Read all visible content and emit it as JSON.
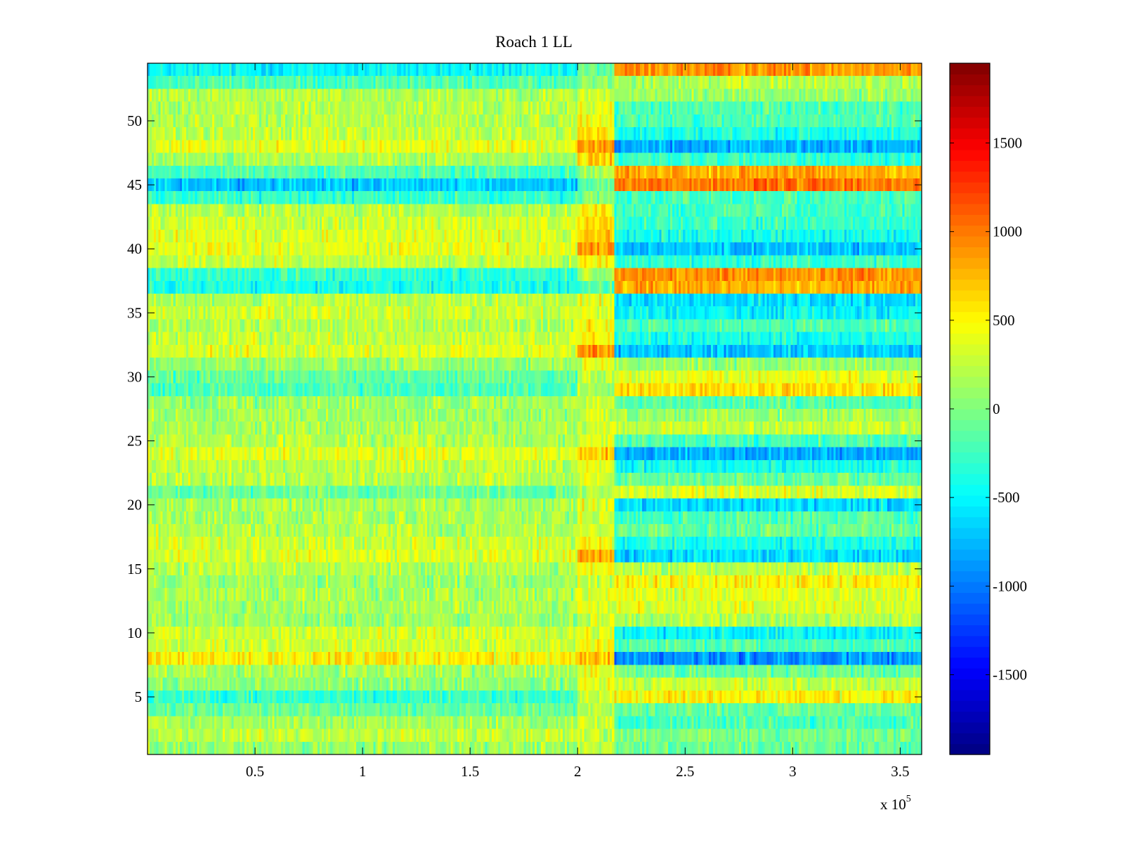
{
  "chart_data": {
    "type": "heatmap",
    "title": "Roach 1 LL",
    "xlabel": "",
    "ylabel": "",
    "x_multiplier_label": "x 10",
    "x_multiplier_exponent": "5",
    "xlim": [
      0,
      3.6
    ],
    "ylim": [
      0.5,
      54.5
    ],
    "xticks": [
      0.5,
      1,
      1.5,
      2,
      2.5,
      3,
      3.5
    ],
    "xtick_labels": [
      "0.5",
      "1",
      "1.5",
      "2",
      "2.5",
      "3",
      "3.5"
    ],
    "yticks": [
      5,
      10,
      15,
      20,
      25,
      30,
      35,
      40,
      45,
      50
    ],
    "ytick_labels": [
      "5",
      "10",
      "15",
      "20",
      "25",
      "30",
      "35",
      "40",
      "45",
      "50"
    ],
    "n_rows": 54,
    "n_cols": 360,
    "colormap": "jet",
    "clim": [
      -1950,
      1950
    ],
    "colorbar": {
      "ticks": [
        -1500,
        -1000,
        -500,
        0,
        500,
        1000,
        1500
      ],
      "tick_labels": [
        "-1500",
        "-1000",
        "-500",
        "0",
        "500",
        "1000",
        "1500"
      ]
    },
    "grid": false,
    "segment_boundaries_x": [
      2.0,
      2.17
    ],
    "row_segment_means": {
      "note": "approximate mean value per row (1..54) for segments x<2.0, 2.0-2.17, >2.17",
      "before": [
        100,
        250,
        150,
        -100,
        -300,
        50,
        150,
        500,
        300,
        300,
        100,
        150,
        150,
        100,
        200,
        350,
        300,
        200,
        150,
        150,
        -100,
        200,
        250,
        350,
        200,
        150,
        100,
        100,
        -200,
        -100,
        100,
        350,
        250,
        200,
        300,
        200,
        -400,
        -300,
        250,
        400,
        350,
        300,
        200,
        -300,
        -700,
        -200,
        150,
        400,
        250,
        200,
        200,
        200,
        -200,
        -500
      ],
      "transition": [
        200,
        250,
        300,
        200,
        300,
        400,
        400,
        700,
        450,
        350,
        300,
        350,
        350,
        300,
        400,
        800,
        500,
        300,
        300,
        350,
        200,
        350,
        400,
        700,
        400,
        300,
        300,
        300,
        150,
        200,
        400,
        900,
        500,
        450,
        400,
        400,
        -200,
        200,
        500,
        900,
        700,
        600,
        450,
        0,
        -100,
        200,
        600,
        900,
        600,
        500,
        400,
        300,
        100,
        -100
      ],
      "after": [
        -100,
        0,
        -200,
        -100,
        500,
        250,
        -100,
        -900,
        -200,
        -500,
        200,
        350,
        350,
        500,
        200,
        -600,
        -400,
        -100,
        -200,
        -600,
        350,
        -100,
        -400,
        -800,
        -200,
        250,
        100,
        -150,
        600,
        400,
        100,
        -700,
        -400,
        -200,
        -500,
        -600,
        800,
        900,
        -300,
        -700,
        -400,
        -300,
        -200,
        -200,
        1000,
        800,
        -300,
        -800,
        -400,
        -200,
        -200,
        100,
        200,
        900
      ]
    }
  }
}
